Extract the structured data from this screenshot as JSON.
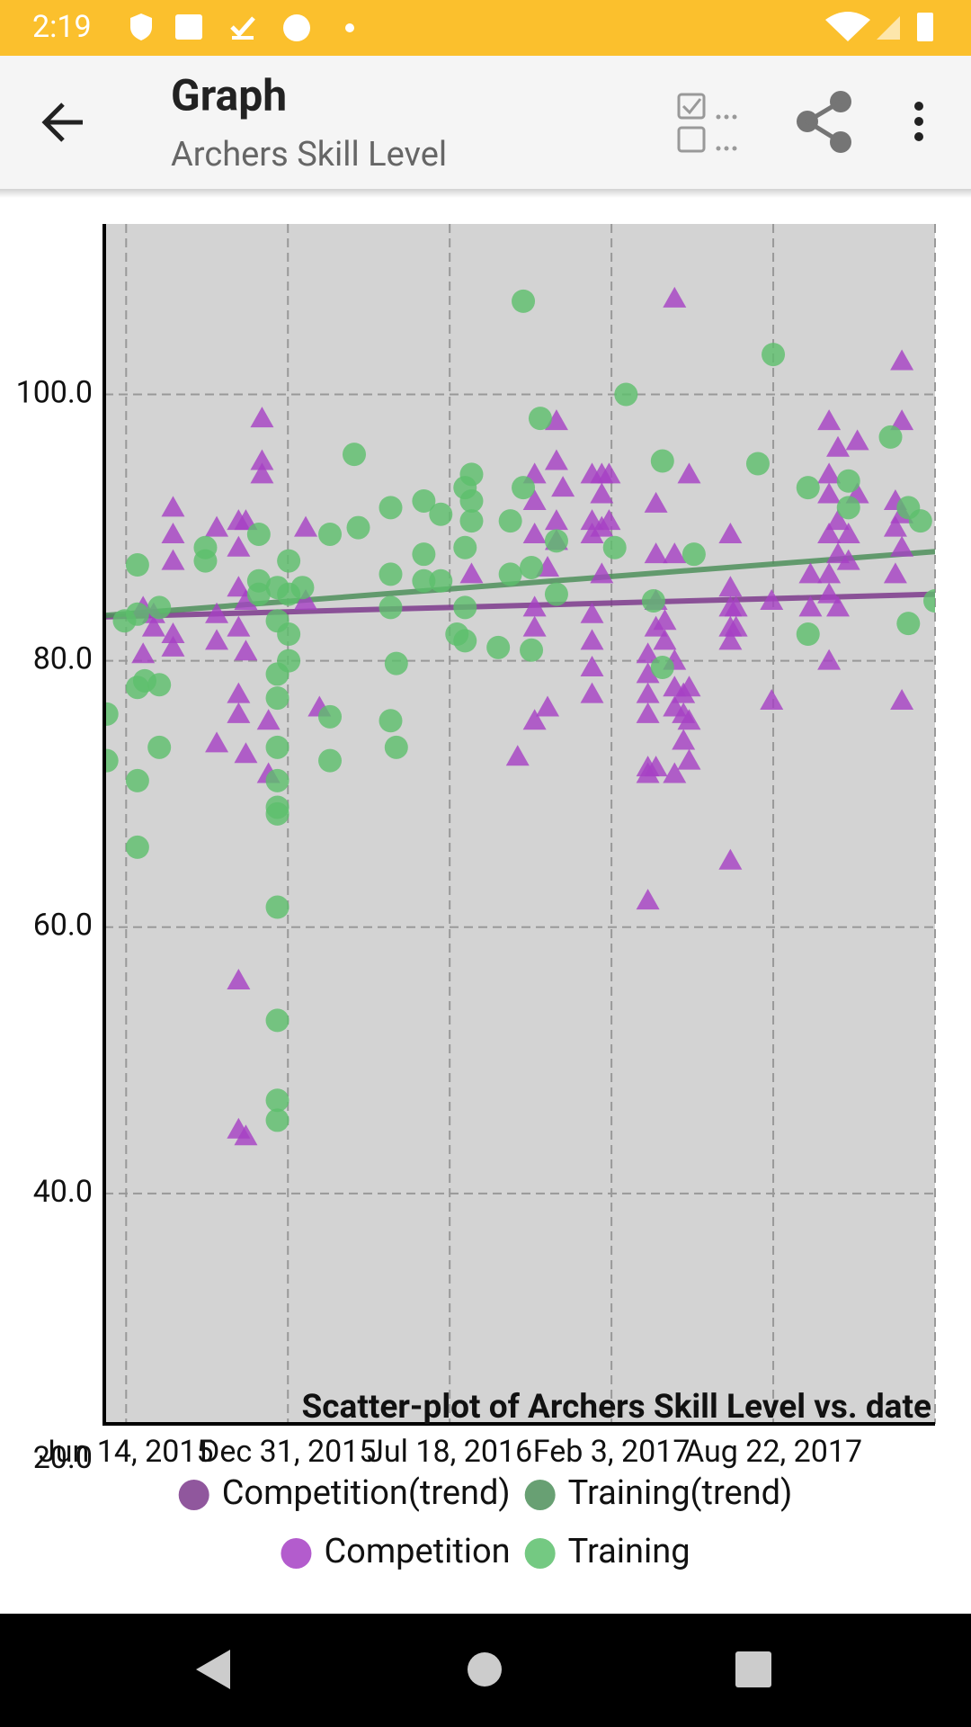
{
  "status_bar": {
    "time": "2:19"
  },
  "toolbar": {
    "title": "Graph",
    "subtitle": "Archers Skill Level"
  },
  "chart_data": {
    "type": "scatter",
    "title": "Scatter-plot of Archers Skill Level vs. date",
    "xlim": [
      "2015-05-18",
      "2018-03-10"
    ],
    "xticks": [
      {
        "value": "2015-06-14",
        "label": "Jun 14, 2015"
      },
      {
        "value": "2015-12-31",
        "label": "Dec 31, 2015"
      },
      {
        "value": "2016-07-18",
        "label": "Jul 18, 2016"
      },
      {
        "value": "2017-02-03",
        "label": "Feb 3, 2017"
      },
      {
        "value": "2017-08-22",
        "label": "Aug 22, 2017"
      }
    ],
    "ylim": [
      22.7,
      112.8
    ],
    "yticks": [
      {
        "value": 20,
        "label": "20.0"
      },
      {
        "value": 40,
        "label": "40.0"
      },
      {
        "value": 60,
        "label": "60.0"
      },
      {
        "value": 80,
        "label": "80.0"
      },
      {
        "value": 100,
        "label": "100.0"
      }
    ],
    "grid": true,
    "series": [
      {
        "name": "Competition(trend)",
        "type": "line",
        "color": "#7d3a8c",
        "x": [
          "2015-05-18",
          "2018-03-10"
        ],
        "values": [
          83.3,
          85.0
        ]
      },
      {
        "name": "Training(trend)",
        "type": "line",
        "color": "#4e8f5a",
        "x": [
          "2015-05-18",
          "2018-03-10"
        ],
        "values": [
          83.4,
          88.2
        ]
      },
      {
        "name": "Competition",
        "marker": "triangle",
        "color": "#a640c4",
        "x": [
          "2015-07-05",
          "2015-07-05",
          "2015-07-18",
          "2015-07-18",
          "2015-08-11",
          "2015-08-11",
          "2015-08-11",
          "2015-08-11",
          "2015-08-11",
          "2015-10-04",
          "2015-10-04",
          "2015-10-04",
          "2015-10-04",
          "2015-10-31",
          "2015-10-31",
          "2015-10-31",
          "2015-10-31",
          "2015-10-31",
          "2015-10-31",
          "2015-10-31",
          "2015-10-31",
          "2015-11-09",
          "2015-11-09",
          "2015-11-09",
          "2015-11-09",
          "2015-11-09",
          "2015-11-29",
          "2015-11-29",
          "2015-11-29",
          "2015-12-07",
          "2015-12-07",
          "2016-01-22",
          "2016-01-22",
          "2016-02-08",
          "2016-08-14",
          "2016-10-10",
          "2016-10-31",
          "2016-10-31",
          "2016-10-31",
          "2016-10-31",
          "2016-10-31",
          "2016-10-31",
          "2016-11-16",
          "2016-11-16",
          "2016-11-27",
          "2016-11-27",
          "2016-11-27",
          "2016-11-27",
          "2016-12-05",
          "2017-01-10",
          "2017-01-10",
          "2017-01-10",
          "2017-01-10",
          "2017-01-10",
          "2017-01-10",
          "2017-01-10",
          "2017-01-22",
          "2017-01-22",
          "2017-01-22",
          "2017-01-22",
          "2017-01-31",
          "2017-01-31",
          "2017-03-20",
          "2017-03-20",
          "2017-03-20",
          "2017-03-20",
          "2017-03-20",
          "2017-03-20",
          "2017-03-20",
          "2017-03-30",
          "2017-03-30",
          "2017-03-30",
          "2017-03-30",
          "2017-03-30",
          "2017-04-10",
          "2017-04-10",
          "2017-04-22",
          "2017-04-22",
          "2017-04-22",
          "2017-04-22",
          "2017-04-22",
          "2017-04-22",
          "2017-05-03",
          "2017-05-03",
          "2017-05-03",
          "2017-05-10",
          "2017-05-10",
          "2017-05-10",
          "2017-05-10",
          "2017-06-30",
          "2017-06-30",
          "2017-06-30",
          "2017-06-30",
          "2017-06-30",
          "2017-06-30",
          "2017-07-07",
          "2017-07-07",
          "2017-08-20",
          "2017-08-20",
          "2017-10-07",
          "2017-10-07",
          "2017-10-30",
          "2017-10-30",
          "2017-10-30",
          "2017-10-30",
          "2017-10-30",
          "2017-10-30",
          "2017-10-30",
          "2017-11-10",
          "2017-11-10",
          "2017-11-10",
          "2017-11-10",
          "2017-11-23",
          "2017-11-23",
          "2017-12-04",
          "2017-12-04",
          "2018-01-20",
          "2018-01-20",
          "2018-01-20",
          "2018-01-28",
          "2018-01-28",
          "2018-01-28",
          "2018-01-28",
          "2018-01-28"
        ],
        "values": [
          84.0,
          80.5,
          82.5,
          83.5,
          91.5,
          89.5,
          87.5,
          82.0,
          81.0,
          90.0,
          83.5,
          81.5,
          73.8,
          90.5,
          88.5,
          85.5,
          82.5,
          77.5,
          76.0,
          56.0,
          44.8,
          90.5,
          84.5,
          80.7,
          73.0,
          44.3,
          98.2,
          95.0,
          94.0,
          75.5,
          71.5,
          90.0,
          84.5,
          76.5,
          86.5,
          72.8,
          94.0,
          92.0,
          89.5,
          84.0,
          82.5,
          75.5,
          87.0,
          76.5,
          98.0,
          95.0,
          90.5,
          89.0,
          93.0,
          94.0,
          90.5,
          89.5,
          83.5,
          81.5,
          79.5,
          77.5,
          94.0,
          92.5,
          90.0,
          86.5,
          94.0,
          90.5,
          80.5,
          79.0,
          77.5,
          76.0,
          72.0,
          71.5,
          62.0,
          91.8,
          88.0,
          84.5,
          82.5,
          72.0,
          83.0,
          81.5,
          107.2,
          88.0,
          80.0,
          78.0,
          76.5,
          71.5,
          77.5,
          76.0,
          74.0,
          94.0,
          78.0,
          72.5,
          75.5,
          89.5,
          85.5,
          84.0,
          82.5,
          81.5,
          65.0,
          84.0,
          82.5,
          84.5,
          77.0,
          86.5,
          84.0,
          98.0,
          94.0,
          89.5,
          86.5,
          85.0,
          92.5,
          80.0,
          96.0,
          90.5,
          84.0,
          88.0,
          87.5,
          89.5,
          96.5,
          92.5,
          92.0,
          90.0,
          86.5,
          102.5,
          98.0,
          91.0,
          88.5,
          77.0
        ]
      },
      {
        "name": "Training",
        "marker": "circle",
        "color": "#5cbf6c",
        "x": [
          "2015-05-21",
          "2015-05-21",
          "2015-06-12",
          "2015-06-28",
          "2015-06-28",
          "2015-06-28",
          "2015-06-28",
          "2015-06-28",
          "2015-07-07",
          "2015-07-25",
          "2015-07-25",
          "2015-07-25",
          "2015-09-20",
          "2015-09-20",
          "2015-11-25",
          "2015-11-25",
          "2015-11-25",
          "2015-12-18",
          "2015-12-18",
          "2015-12-18",
          "2015-12-18",
          "2015-12-18",
          "2015-12-18",
          "2015-12-18",
          "2015-12-18",
          "2015-12-18",
          "2015-12-18",
          "2015-12-18",
          "2015-12-18",
          "2016-01-01",
          "2016-01-01",
          "2016-01-01",
          "2016-01-01",
          "2016-01-18",
          "2016-02-21",
          "2016-02-21",
          "2016-02-21",
          "2016-03-22",
          "2016-03-27",
          "2016-05-06",
          "2016-05-06",
          "2016-05-06",
          "2016-05-06",
          "2016-05-13",
          "2016-05-13",
          "2016-06-16",
          "2016-06-16",
          "2016-06-16",
          "2016-07-07",
          "2016-07-07",
          "2016-07-27",
          "2016-08-06",
          "2016-08-06",
          "2016-08-06",
          "2016-08-06",
          "2016-08-14",
          "2016-08-14",
          "2016-08-14",
          "2016-09-16",
          "2016-10-01",
          "2016-10-01",
          "2016-10-17",
          "2016-10-17",
          "2016-10-27",
          "2016-10-27",
          "2016-11-07",
          "2016-11-27",
          "2016-11-27",
          "2017-02-07",
          "2017-02-21",
          "2017-03-27",
          "2017-04-07",
          "2017-04-07",
          "2017-05-16",
          "2017-08-03",
          "2017-08-22",
          "2017-10-04",
          "2017-10-04",
          "2017-11-23",
          "2017-11-23",
          "2018-01-14",
          "2018-02-05",
          "2018-02-05",
          "2018-02-20",
          "2018-03-10"
        ],
        "values": [
          76.0,
          72.5,
          83.0,
          87.2,
          83.5,
          78.0,
          71.0,
          66.0,
          78.5,
          84.0,
          78.2,
          73.5,
          88.5,
          87.5,
          89.5,
          86.0,
          85.0,
          85.5,
          83.0,
          79.0,
          77.2,
          73.5,
          71.0,
          69.0,
          68.5,
          61.5,
          53.0,
          47.0,
          45.5,
          87.5,
          85.0,
          82.0,
          80.0,
          85.5,
          89.5,
          75.8,
          72.5,
          95.5,
          90.0,
          91.5,
          86.5,
          84.0,
          75.5,
          79.8,
          73.5,
          92.0,
          88.0,
          86.0,
          91.0,
          86.0,
          82.0,
          93.0,
          88.5,
          84.0,
          81.5,
          94.0,
          90.5,
          92.0,
          81.0,
          90.5,
          86.5,
          107.0,
          93.0,
          87.0,
          80.8,
          98.2,
          89.0,
          85.0,
          88.5,
          100.0,
          84.5,
          95.0,
          79.5,
          88.0,
          94.8,
          103.0,
          93.0,
          82.0,
          93.5,
          91.5,
          96.8,
          91.5,
          82.8,
          90.5,
          84.5
        ]
      }
    ]
  }
}
